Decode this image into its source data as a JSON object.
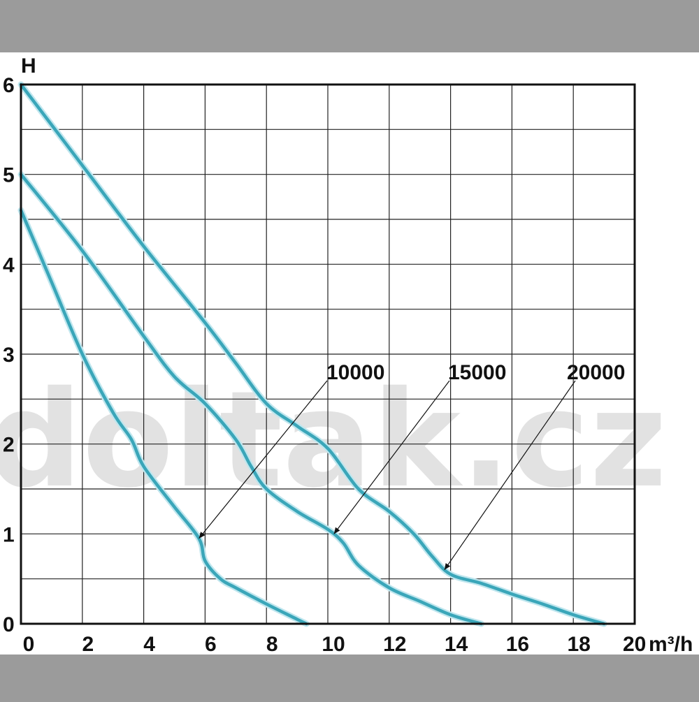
{
  "watermark": "doltak.cz",
  "chart_data": {
    "type": "line",
    "title": "",
    "xlabel": "m³/h",
    "ylabel": "H",
    "xlim": [
      0,
      20
    ],
    "ylim": [
      0,
      6
    ],
    "x_ticks": [
      "0",
      "2",
      "4",
      "6",
      "8",
      "10",
      "12",
      "14",
      "16",
      "18",
      "20"
    ],
    "y_ticks": [
      "0",
      "1",
      "2",
      "3",
      "4",
      "5",
      "6"
    ],
    "x_tick_values": [
      0,
      2,
      4,
      6,
      8,
      10,
      12,
      14,
      16,
      18,
      20
    ],
    "y_tick_values": [
      0,
      1,
      2,
      3,
      4,
      5,
      6
    ],
    "grid": true,
    "line_color": "#3aa6b9",
    "series": [
      {
        "name": "10000",
        "x": [
          0,
          1,
          2,
          3,
          3.6,
          4,
          5,
          5.8,
          6,
          6.5,
          7,
          8,
          9,
          9.3
        ],
        "y": [
          4.6,
          3.8,
          3.0,
          2.35,
          2.05,
          1.75,
          1.3,
          0.95,
          0.7,
          0.5,
          0.4,
          0.22,
          0.05,
          0
        ]
      },
      {
        "name": "15000",
        "x": [
          0,
          2,
          4,
          5,
          6,
          7,
          7.5,
          8,
          9,
          10,
          10.5,
          11,
          12,
          13,
          14,
          15
        ],
        "y": [
          5.0,
          4.15,
          3.2,
          2.75,
          2.45,
          2.05,
          1.75,
          1.5,
          1.25,
          1.05,
          0.9,
          0.65,
          0.4,
          0.25,
          0.1,
          0
        ]
      },
      {
        "name": "20000",
        "x": [
          0,
          2,
          4,
          6,
          7,
          8,
          9,
          10,
          11,
          12,
          12.8,
          13.4,
          14,
          15,
          16,
          17,
          18,
          19
        ],
        "y": [
          6.0,
          5.1,
          4.2,
          3.35,
          2.9,
          2.45,
          2.2,
          1.95,
          1.5,
          1.25,
          1.0,
          0.75,
          0.55,
          0.45,
          0.33,
          0.22,
          0.1,
          0
        ]
      }
    ],
    "annotations": [
      {
        "text": "10000",
        "series": "10000",
        "point": [
          5.8,
          0.95
        ]
      },
      {
        "text": "15000",
        "series": "15000",
        "point": [
          10.2,
          1.0
        ]
      },
      {
        "text": "20000",
        "series": "20000",
        "point": [
          13.8,
          0.6
        ]
      }
    ]
  }
}
